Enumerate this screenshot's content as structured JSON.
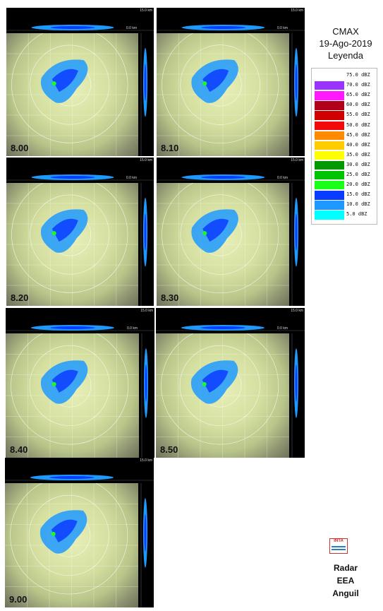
{
  "legend": {
    "title_lines": [
      "CMAX",
      "19-Ago-2019",
      "Leyenda"
    ],
    "entries": [
      {
        "label": "75.0 dBZ",
        "color": "#ffffff"
      },
      {
        "label": "70.0 dBZ",
        "color": "#9a33ff"
      },
      {
        "label": "65.0 dBZ",
        "color": "#ff19ff"
      },
      {
        "label": "60.0 dBZ",
        "color": "#b0001a"
      },
      {
        "label": "55.0 dBZ",
        "color": "#d00000"
      },
      {
        "label": "50.0 dBZ",
        "color": "#f20a0a"
      },
      {
        "label": "45.0 dBZ",
        "color": "#ff8a00"
      },
      {
        "label": "40.0 dBZ",
        "color": "#ffcc00"
      },
      {
        "label": "35.0 dBZ",
        "color": "#ffff00"
      },
      {
        "label": "30.0 dBZ",
        "color": "#009a00"
      },
      {
        "label": "25.0 dBZ",
        "color": "#00c400"
      },
      {
        "label": "20.0 dBZ",
        "color": "#1aff1a"
      },
      {
        "label": "15.0 dBZ",
        "color": "#0a3cff"
      },
      {
        "label": "10.0 dBZ",
        "color": "#1e9aff"
      },
      {
        "label": "5.0 dBZ",
        "color": "#00ffff"
      }
    ]
  },
  "panels": [
    {
      "time": "8.00",
      "km_top": "15.0 km",
      "km_base": "0.0 km"
    },
    {
      "time": "8.10",
      "km_top": "15.0 km",
      "km_base": "0.0 km"
    },
    {
      "time": "8.20",
      "km_top": "15.0 km",
      "km_base": "0.0 km"
    },
    {
      "time": "8.30",
      "km_top": "15.0 km",
      "km_base": "0.0 km"
    },
    {
      "time": "8.40",
      "km_top": "15.0 km",
      "km_base": "0.0 km"
    },
    {
      "time": "8.50",
      "km_top": "15.0 km",
      "km_base": "0.0 km"
    },
    {
      "time": "9.00",
      "km_top": "15.0 km",
      "km_base": ""
    }
  ],
  "logo_text": "INTA",
  "footer_lines": [
    "Radar",
    "EEA",
    "Anguil"
  ]
}
